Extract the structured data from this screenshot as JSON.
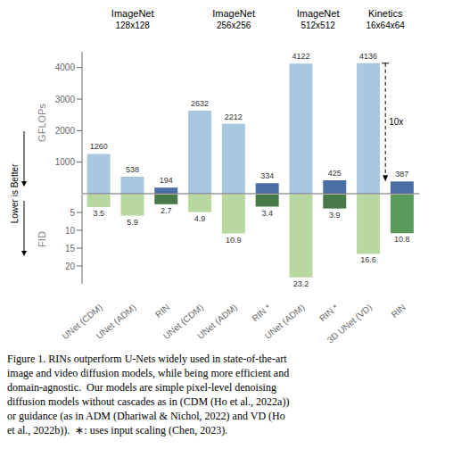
{
  "chart_data": [
    {
      "type": "bar",
      "y_label": "GFLOPs",
      "categories": [
        "UNet (CDM)",
        "UNet (ADM)",
        "RIN",
        "UNet (CDM)",
        "UNet (ADM)",
        "RIN *",
        "UNet (ADM)",
        "RIN *",
        "3D UNet (VD)",
        "RIN"
      ],
      "values": [
        1260,
        538,
        194,
        2632,
        2212,
        334,
        4122,
        425,
        4136,
        387
      ],
      "colors": [
        "#a8c8e0",
        "#a8c8e0",
        "#4a6fa5",
        "#a8c8e0",
        "#a8c8e0",
        "#4a6fa5",
        "#a8c8e0",
        "#4a6fa5",
        "#a8c8e0",
        "#4a6fa5"
      ],
      "ylim": [
        0,
        4500
      ],
      "yticks": [
        1000,
        2000,
        3000,
        4000
      ],
      "data_labels": true,
      "annotations": [
        {
          "text": "10x",
          "y": [
            4136,
            387
          ]
        }
      ]
    },
    {
      "type": "bar",
      "y_label": "FID",
      "categories": [
        "UNet (CDM)",
        "UNet (ADM)",
        "RIN",
        "UNet (CDM)",
        "UNet (ADM)",
        "RIN *",
        "UNet (ADM)",
        "RIN *",
        "3D UNet (VD)",
        "RIN"
      ],
      "values": [
        3.5,
        5.9,
        2.7,
        4.9,
        10.9,
        3.4,
        23.2,
        3.9,
        16.6,
        10.8
      ],
      "colors": [
        "#b8d8a0",
        "#b8d8a0",
        "#4a7a4a",
        "#b8d8a0",
        "#b8d8a0",
        "#4a7a4a",
        "#b8d8a0",
        "#4a7a4a",
        "#b8d8a0",
        "#5a9a5a"
      ],
      "ylim": [
        0,
        25
      ],
      "yticks": [
        5,
        10,
        15,
        20
      ],
      "data_labels": true
    }
  ],
  "groups": [
    {
      "title": "ImageNet",
      "subtitle": "128x128",
      "categories": [
        "UNet (CDM)",
        "UNet (ADM)",
        "RIN"
      ]
    },
    {
      "title": "ImageNet",
      "subtitle": "256x256",
      "categories": [
        "UNet (CDM)",
        "UNet (ADM)",
        "RIN *"
      ]
    },
    {
      "title": "ImageNet",
      "subtitle": "512x512",
      "categories": [
        "UNet (ADM)",
        "RIN *"
      ]
    },
    {
      "title": "Kinetics",
      "subtitle": "16x64x64",
      "categories": [
        "3D UNet (VD)",
        "RIN"
      ]
    }
  ],
  "side_label": "Lower is Better",
  "caption": "Figure 1. RINs outperform U-Nets widely used in state-of-the-art\nimage and video diffusion models, while being more efficient and\ndomain-agnostic.  Our models are simple pixel-level denoising\ndiffusion models without cascades as in (CDM (Ho et al., 2022a))\nor guidance (as in ADM (Dhariwal & Nichol, 2022) and VD (Ho\net al., 2022b)).  ∗: uses input scaling (Chen, 2023)."
}
